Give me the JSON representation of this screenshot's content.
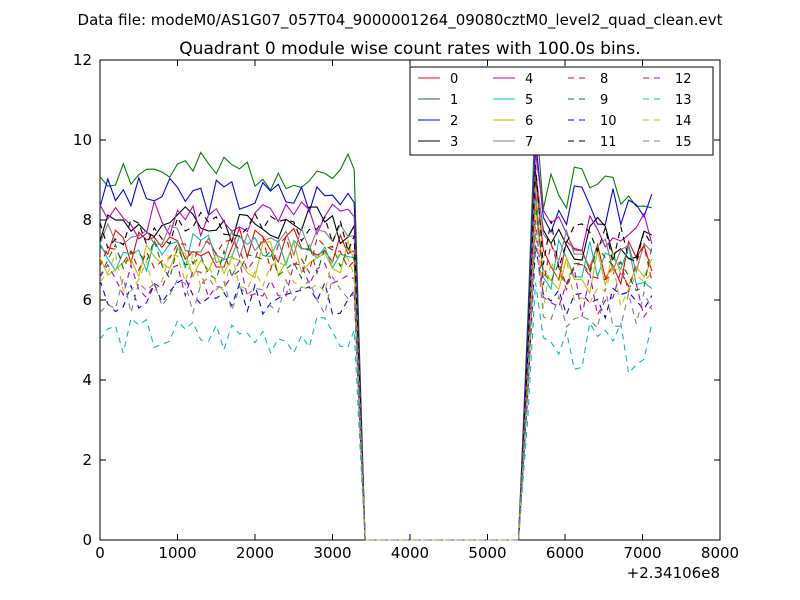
{
  "figure": {
    "suptitle": "Data file: modeM0/AS1G07_057T04_9000001264_09080cztM0_level2_quad_clean.evt"
  },
  "chart_data": {
    "type": "line",
    "title": "Quadrant 0 module wise count rates with 100.0s bins.",
    "xlabel": "",
    "ylabel": "",
    "x_offset_label": "+2.34106e8",
    "xlim": [
      0,
      8000
    ],
    "ylim": [
      0,
      12
    ],
    "xticks": [
      0,
      1000,
      2000,
      3000,
      4000,
      5000,
      6000,
      7000,
      8000
    ],
    "yticks": [
      0,
      2,
      4,
      6,
      8,
      10,
      12
    ],
    "grid": false,
    "legend_position": "top-right",
    "legend_columns": 4,
    "series": [
      {
        "name": "0",
        "color": "#ff0000",
        "dash": "solid",
        "base": 7.3,
        "amp": 0.35,
        "seed": 1
      },
      {
        "name": "1",
        "color": "#008000",
        "dash": "solid",
        "base": 9.2,
        "amp": 0.35,
        "seed": 2
      },
      {
        "name": "2",
        "color": "#0000ff",
        "dash": "solid",
        "base": 8.6,
        "amp": 0.35,
        "seed": 3
      },
      {
        "name": "3",
        "color": "#000000",
        "dash": "solid",
        "base": 7.9,
        "amp": 0.35,
        "seed": 4
      },
      {
        "name": "4",
        "color": "#bf00bf",
        "dash": "solid",
        "base": 8.0,
        "amp": 0.35,
        "seed": 5
      },
      {
        "name": "5",
        "color": "#00bfbf",
        "dash": "solid",
        "base": 7.2,
        "amp": 0.35,
        "seed": 6
      },
      {
        "name": "6",
        "color": "#bfbf00",
        "dash": "solid",
        "base": 7.0,
        "amp": 0.35,
        "seed": 7
      },
      {
        "name": "7",
        "color": "#808080",
        "dash": "solid",
        "base": 7.5,
        "amp": 0.35,
        "seed": 8
      },
      {
        "name": "8",
        "color": "#ff0000",
        "dash": "dashed",
        "base": 7.1,
        "amp": 0.35,
        "seed": 9
      },
      {
        "name": "9",
        "color": "#008000",
        "dash": "dashed",
        "base": 7.0,
        "amp": 0.35,
        "seed": 10
      },
      {
        "name": "10",
        "color": "#0000ff",
        "dash": "dashed",
        "base": 6.1,
        "amp": 0.35,
        "seed": 11
      },
      {
        "name": "11",
        "color": "#000000",
        "dash": "dashed",
        "base": 7.7,
        "amp": 0.35,
        "seed": 12
      },
      {
        "name": "12",
        "color": "#bf00bf",
        "dash": "dashed",
        "base": 6.5,
        "amp": 0.35,
        "seed": 13
      },
      {
        "name": "13",
        "color": "#00bfbf",
        "dash": "dashed",
        "base": 5.1,
        "amp": 0.35,
        "seed": 14
      },
      {
        "name": "14",
        "color": "#bfbf00",
        "dash": "dashed",
        "base": 6.7,
        "amp": 0.35,
        "seed": 15
      },
      {
        "name": "15",
        "color": "#808080",
        "dash": "dashed",
        "base": 6.1,
        "amp": 0.35,
        "seed": 16
      }
    ],
    "segments": {
      "active1": [
        0,
        3200
      ],
      "drop_start": 3280,
      "zero_range": [
        3420,
        5400
      ],
      "active2": [
        5620,
        7120
      ],
      "step": 100
    }
  }
}
